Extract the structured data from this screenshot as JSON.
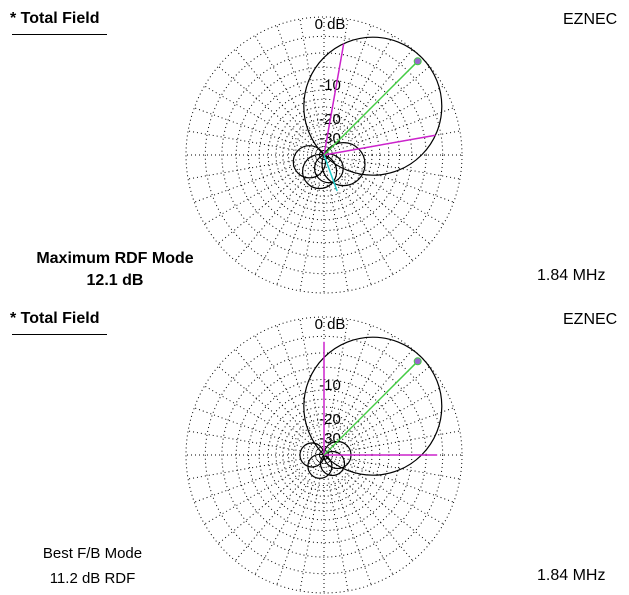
{
  "panels": [
    {
      "title": "* Total Field",
      "brand": "EZNEC",
      "frequency": "1.84 MHz",
      "mode_line1": "Maximum RDF Mode",
      "mode_line2": "12.1 dB"
    },
    {
      "title": "* Total Field",
      "brand": "EZNEC",
      "frequency": "1.84 MHz",
      "mode_line1": "Best F/B Mode",
      "mode_line2": "11.2 dB RDF"
    }
  ],
  "chart_data": [
    {
      "type": "polar",
      "radial_ticks": [
        "0 dB",
        "-10",
        "-20",
        "-30"
      ],
      "max_gain_direction_deg": 45,
      "lobes": [
        {
          "dir_deg": 45,
          "rel_db": 0
        },
        {
          "dir_deg": 115,
          "rel_db": -20
        },
        {
          "dir_deg": 160,
          "rel_db": -27
        },
        {
          "dir_deg": 195,
          "rel_db": -24
        },
        {
          "dir_deg": 245,
          "rel_db": -25
        }
      ],
      "beamwidth_lines_deg": [
        10,
        80
      ],
      "back_line_deg": 160,
      "colors": {
        "pattern": "#000000",
        "max_line": "#44cc44",
        "beamwidth_line": "#cc22cc",
        "back_line": "#22cccc",
        "grid": "#000000"
      }
    },
    {
      "type": "polar",
      "radial_ticks": [
        "0 dB",
        "-10",
        "-20",
        "-30"
      ],
      "max_gain_direction_deg": 45,
      "lobes": [
        {
          "dir_deg": 45,
          "rel_db": 0
        },
        {
          "dir_deg": 90,
          "rel_db": -28
        },
        {
          "dir_deg": 135,
          "rel_db": -30
        },
        {
          "dir_deg": 200,
          "rel_db": -30
        },
        {
          "dir_deg": 270,
          "rel_db": -30
        }
      ],
      "beamwidth_lines_deg": [
        0,
        90
      ],
      "colors": {
        "pattern": "#000000",
        "max_line": "#44cc44",
        "beamwidth_line": "#cc22cc",
        "grid": "#000000"
      }
    }
  ]
}
